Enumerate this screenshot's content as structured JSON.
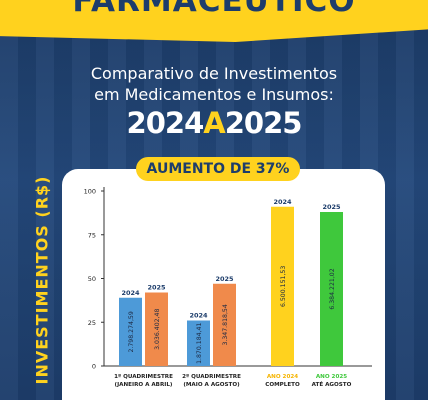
{
  "banner": {
    "text": "FARMACÊUTICO"
  },
  "heading": {
    "line1": "Comparativo de Investimentos",
    "line2": "em Medicamentos e Insumos:",
    "year_start": "2024",
    "year_sep": "A",
    "year_end": "2025"
  },
  "badge": {
    "text": "AUMENTO DE 37%"
  },
  "colors": {
    "blue": "#4d9ad8",
    "orange": "#f08a4b",
    "yellow": "#ffd21e",
    "green": "#3fc83c",
    "navy": "#1d3d6b"
  },
  "chart_data": {
    "type": "bar",
    "ylabel": "INVESTIMENTOS (R$)",
    "ylim": [
      0,
      100
    ],
    "yticks": [
      "0",
      "25",
      "50",
      "75",
      "100"
    ],
    "grid": false,
    "groups": [
      {
        "category_line1": "1º QUADRIMESTRE",
        "category_line2": "(JANEIRO A ABRIL)",
        "bars": [
          {
            "year": "2024",
            "value": 39,
            "label": "2.798.274,59",
            "color": "blue"
          },
          {
            "year": "2025",
            "value": 42,
            "label": "3.036.402,48",
            "color": "orange"
          }
        ]
      },
      {
        "category_line1": "2º QUADRIMESTRE",
        "category_line2": "(MAIO A AGOSTO)",
        "bars": [
          {
            "year": "2024",
            "value": 26,
            "label": "1.870.184,41",
            "color": "blue"
          },
          {
            "year": "2025",
            "value": 47,
            "label": "3.347.818,54",
            "color": "orange"
          }
        ]
      },
      {
        "category_line1": "",
        "category_line2": "",
        "bars": [
          {
            "year": "2024",
            "value": 91,
            "label": "6.500.151,53",
            "color": "yellow",
            "cat_line1": "ANO 2024",
            "cat_line2": "COMPLETO",
            "cat_color": "#f5b400"
          },
          {
            "year": "2025",
            "value": 88,
            "label": "6.384.221,02",
            "color": "green",
            "cat_line1": "ANO 2025",
            "cat_line2": "ATÉ AGOSTO",
            "cat_color": "#3fc83c"
          }
        ]
      }
    ]
  }
}
